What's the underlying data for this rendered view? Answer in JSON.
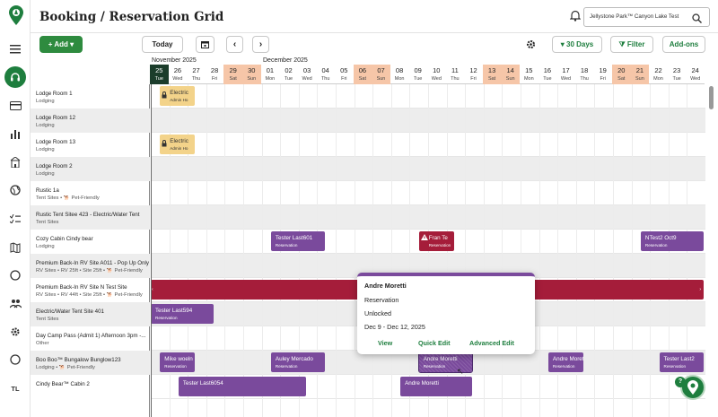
{
  "sidebar": {
    "items": [
      {
        "icon": "menu-icon"
      },
      {
        "icon": "headset-icon"
      },
      {
        "icon": "card-icon"
      },
      {
        "icon": "chart-icon"
      },
      {
        "icon": "building-icon"
      },
      {
        "icon": "globe-icon"
      },
      {
        "icon": "checklist-icon"
      },
      {
        "icon": "map-icon"
      },
      {
        "icon": "circle-icon"
      },
      {
        "icon": "users-icon"
      },
      {
        "icon": "settings-icon"
      },
      {
        "icon": "circle-icon"
      }
    ],
    "avatar": "TL"
  },
  "header": {
    "title": "Booking / Reservation Grid",
    "park": "Jellystone Park™ Canyon Lake Test"
  },
  "toolbar": {
    "add": "+ Add ▾",
    "today": "Today",
    "prev": "‹",
    "next": "›",
    "range": "▾ 30 Days",
    "filter": "⧩ Filter",
    "addons": "Add-ons"
  },
  "months": [
    "November 2025",
    "December 2025"
  ],
  "days": [
    {
      "d": "25",
      "w": "Tue",
      "t": "today"
    },
    {
      "d": "26",
      "w": "Wed",
      "t": ""
    },
    {
      "d": "27",
      "w": "Thu",
      "t": ""
    },
    {
      "d": "28",
      "w": "Fri",
      "t": ""
    },
    {
      "d": "29",
      "w": "Sat",
      "t": "wk"
    },
    {
      "d": "30",
      "w": "Sun",
      "t": "wk"
    },
    {
      "d": "01",
      "w": "Mon",
      "t": ""
    },
    {
      "d": "02",
      "w": "Tue",
      "t": ""
    },
    {
      "d": "03",
      "w": "Wed",
      "t": ""
    },
    {
      "d": "04",
      "w": "Thu",
      "t": ""
    },
    {
      "d": "05",
      "w": "Fri",
      "t": ""
    },
    {
      "d": "06",
      "w": "Sat",
      "t": "wk"
    },
    {
      "d": "07",
      "w": "Sun",
      "t": "wk"
    },
    {
      "d": "08",
      "w": "Mon",
      "t": ""
    },
    {
      "d": "09",
      "w": "Tue",
      "t": ""
    },
    {
      "d": "10",
      "w": "Wed",
      "t": ""
    },
    {
      "d": "11",
      "w": "Thu",
      "t": ""
    },
    {
      "d": "12",
      "w": "Fri",
      "t": ""
    },
    {
      "d": "13",
      "w": "Sat",
      "t": "wk"
    },
    {
      "d": "14",
      "w": "Sun",
      "t": "wk"
    },
    {
      "d": "15",
      "w": "Mon",
      "t": ""
    },
    {
      "d": "16",
      "w": "Tue",
      "t": ""
    },
    {
      "d": "17",
      "w": "Wed",
      "t": ""
    },
    {
      "d": "18",
      "w": "Thu",
      "t": ""
    },
    {
      "d": "19",
      "w": "Fri",
      "t": ""
    },
    {
      "d": "20",
      "w": "Sat",
      "t": "wk"
    },
    {
      "d": "21",
      "w": "Sun",
      "t": "wk"
    },
    {
      "d": "22",
      "w": "Mon",
      "t": ""
    },
    {
      "d": "23",
      "w": "Tue",
      "t": ""
    },
    {
      "d": "24",
      "w": "Wed",
      "t": ""
    }
  ],
  "rows": [
    {
      "name": "Lodge Room 1",
      "cat": "Lodging"
    },
    {
      "name": "Lodge Room 12",
      "cat": "Lodging"
    },
    {
      "name": "Lodge Room 13",
      "cat": "Lodging"
    },
    {
      "name": "Lodge Room 2",
      "cat": "Lodging"
    },
    {
      "name": "Rustic 1a",
      "cat": "Tent Sites • 🐕 Pet-Friendly"
    },
    {
      "name": "Rustic Tent Sitee 423 - Electric/Water Tent",
      "cat": "Tent Sites"
    },
    {
      "name": "Cozy Cabin Cindy bear",
      "cat": "Lodging"
    },
    {
      "name": "Premium Back-In RV Site A011 - Pop Up Only",
      "cat": "RV Sites • RV 25ft • Site 25ft • 🐕 Pet-Friendly"
    },
    {
      "name": "Premium Back-In RV Site N Test Site",
      "cat": "RV Sites • RV 44ft • Site 25ft • 🐕 Pet-Friendly"
    },
    {
      "name": "Electric/Water Tent Site 401",
      "cat": "Tent Sites"
    },
    {
      "name": "Day Camp Pass (Admit 1) Afternoon 3pm -...",
      "cat": "Other"
    },
    {
      "name": "Boo Boo™ Bungalow Bunglow123",
      "cat": "Lodging • 🐕 Pet-Friendly"
    },
    {
      "name": "Cindy Bear™ Cabin 2",
      "cat": ""
    }
  ],
  "reservations": [
    {
      "row": 0,
      "start": 0.5,
      "days": 2,
      "label": "Electric",
      "sub": "Admin Ho",
      "color": "y",
      "lock": true
    },
    {
      "row": 2,
      "start": 0.5,
      "days": 2,
      "label": "Electric",
      "sub": "Admin Ho",
      "color": "y",
      "lock": true
    },
    {
      "row": 6,
      "start": 6.5,
      "days": 3,
      "label": "Tester Last601",
      "sub": "Reservation",
      "color": "p"
    },
    {
      "row": 6,
      "start": 14.5,
      "days": 2,
      "label": "Fran Te",
      "sub": "Reservation",
      "color": "r",
      "warn": true
    },
    {
      "row": 6,
      "start": 26.5,
      "days": 3.5,
      "label": "NTest2 Oct9",
      "sub": "Reservation",
      "color": "p"
    },
    {
      "row": 8,
      "start": 0,
      "days": 30,
      "label": "",
      "sub": "",
      "color": "r"
    },
    {
      "row": 9,
      "start": 0,
      "days": 3.5,
      "label": "Tester Last594",
      "sub": "Reservation",
      "color": "p"
    },
    {
      "row": 11,
      "start": 0.5,
      "days": 2,
      "label": "Mike woeln",
      "sub": "Reservation",
      "color": "p"
    },
    {
      "row": 11,
      "start": 6.5,
      "days": 3,
      "label": "Auley Mercado",
      "sub": "Reservation",
      "color": "p"
    },
    {
      "row": 11,
      "start": 14.5,
      "days": 3,
      "label": "Andre Moretti",
      "sub": "Reservation",
      "color": "p",
      "sel": true
    },
    {
      "row": 11,
      "start": 21.5,
      "days": 2,
      "label": "Andre Moretti",
      "sub": "Reservation",
      "color": "p"
    },
    {
      "row": 11,
      "start": 27.5,
      "days": 2.5,
      "label": "Tester Last2",
      "sub": "Reservation",
      "color": "p"
    },
    {
      "row": 12,
      "start": 1.5,
      "days": 7,
      "label": "Tester Last6054",
      "sub": "",
      "color": "p"
    },
    {
      "row": 12,
      "start": 13.5,
      "days": 4,
      "label": "Andre Moretti",
      "sub": "",
      "color": "p"
    }
  ],
  "popup": {
    "name": "Andre Moretti",
    "type": "Reservation",
    "lock": "Unlocked",
    "dates": "Dec 9 - Dec 12, 2025",
    "view": "View",
    "quick": "Quick Edit",
    "advanced": "Advanced Edit"
  },
  "colors": {
    "brand": "#1e7e3e",
    "purple": "#7a4a9c",
    "red": "#a51d3a",
    "weekend": "#f6c6a8"
  }
}
